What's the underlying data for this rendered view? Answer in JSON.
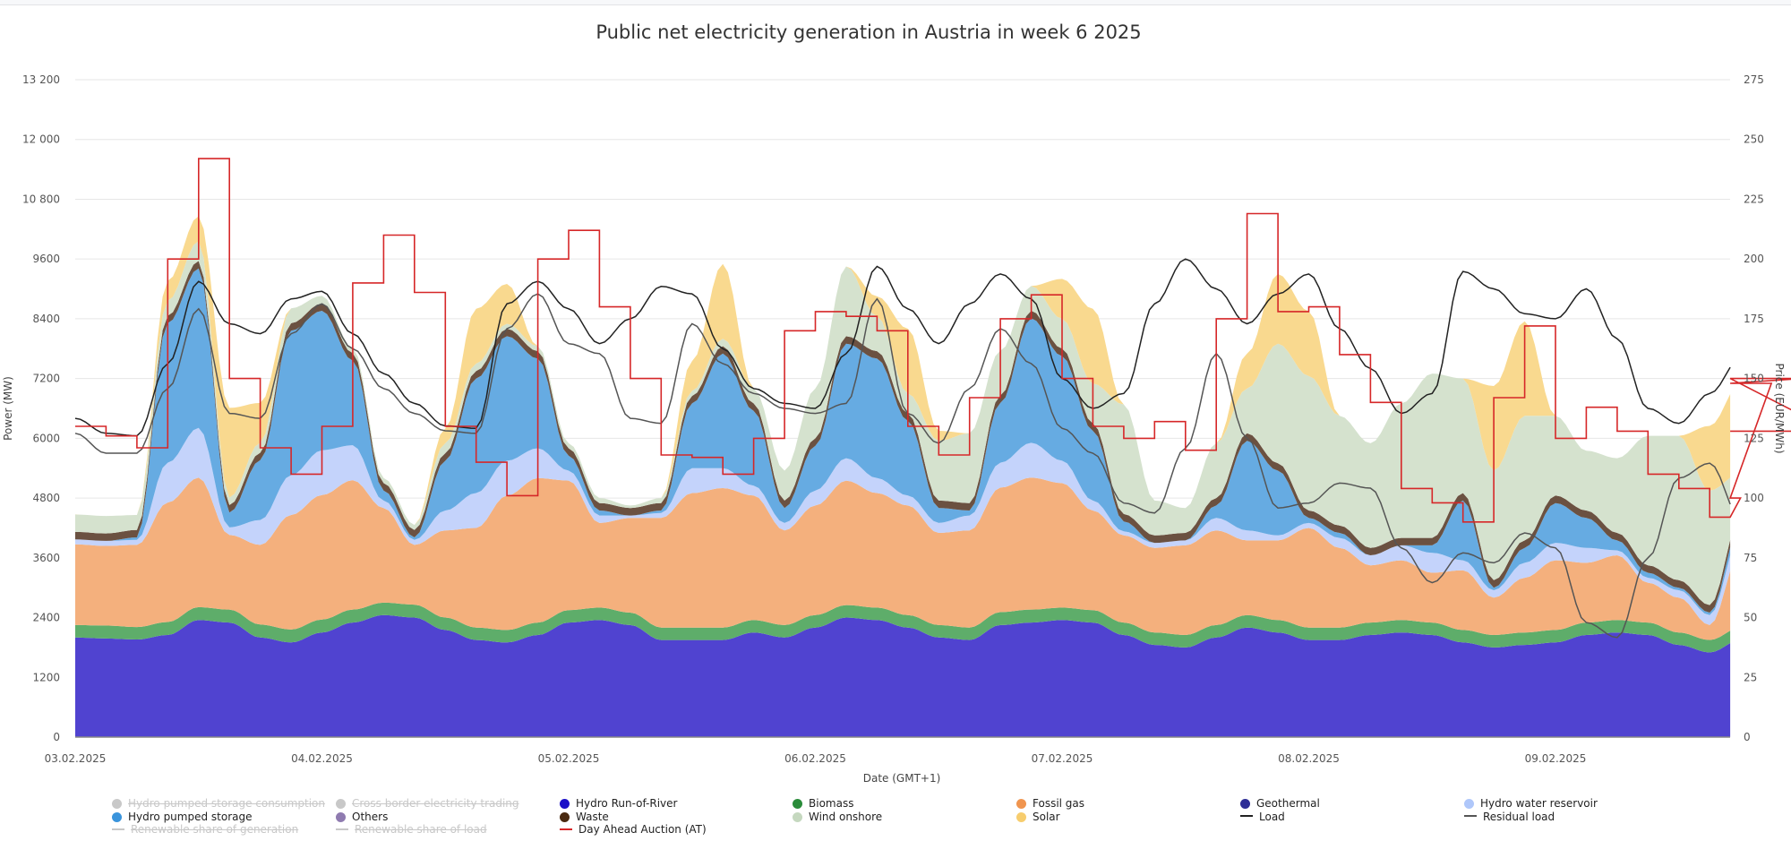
{
  "chart_data": {
    "type": "area",
    "title": "Public net electricity generation in Austria in week 6 2025",
    "xlabel": "Date (GMT+1)",
    "ylabel": "Power (MW)",
    "y2label": "Price (EUR/MWh)",
    "ylim": [
      0,
      13200
    ],
    "y2lim": [
      0,
      275
    ],
    "yticks": [
      "0",
      "1200",
      "2400",
      "3600",
      "4800",
      "6000",
      "7200",
      "8400",
      "9600",
      "10 800",
      "12 000",
      "13 200"
    ],
    "y2ticks": [
      "0",
      "25",
      "50",
      "75",
      "100",
      "125",
      "150",
      "175",
      "200",
      "225",
      "250",
      "275"
    ],
    "xticks": [
      "03.02.2025",
      "04.02.2025",
      "05.02.2025",
      "06.02.2025",
      "07.02.2025",
      "08.02.2025",
      "09.02.2025"
    ],
    "x_unit": "hours since 03.02.2025 00:00",
    "x_step_hours": 3,
    "x_end_hours": 161,
    "grid": true,
    "legend_position": "bottom",
    "stacked_series": [
      {
        "name": "Hydro Run-of-River",
        "color": "#5043d0",
        "values": [
          2000,
          1980,
          1960,
          2050,
          2350,
          2300,
          2000,
          1900,
          2100,
          2300,
          2450,
          2400,
          2150,
          1950,
          1900,
          2050,
          2300,
          2350,
          2250,
          1950,
          1950,
          1950,
          2100,
          2000,
          2200,
          2400,
          2350,
          2200,
          2000,
          1950,
          2250,
          2300,
          2350,
          2300,
          2050,
          1850,
          1800,
          2000,
          2200,
          2100,
          1950,
          1950,
          2050,
          2100,
          2050,
          1900,
          1800,
          1850,
          1900,
          2050,
          2100,
          2050,
          1850,
          1700,
          1950,
          2150,
          2150,
          1950
        ]
      },
      {
        "name": "Biomass",
        "color": "#5ead6a",
        "values": [
          250,
          260,
          250,
          260,
          260,
          260,
          260,
          260,
          260,
          260,
          250,
          260,
          250,
          250,
          250,
          250,
          250,
          250,
          250,
          250,
          250,
          250,
          250,
          250,
          250,
          250,
          250,
          250,
          250,
          250,
          260,
          260,
          250,
          250,
          250,
          250,
          250,
          250,
          250,
          250,
          250,
          250,
          250,
          250,
          250,
          250,
          250,
          250,
          250,
          250,
          250,
          250,
          250,
          250,
          250,
          250,
          250,
          250
        ]
      },
      {
        "name": "Fossil gas",
        "color": "#f4b07d",
        "values": [
          1620,
          1600,
          1650,
          2400,
          2600,
          1500,
          1600,
          2300,
          2500,
          2600,
          1900,
          1200,
          1750,
          2000,
          2700,
          2900,
          2600,
          1700,
          1900,
          2200,
          2700,
          2800,
          2500,
          1900,
          2200,
          2500,
          2300,
          2200,
          1850,
          1950,
          2500,
          2650,
          2500,
          2000,
          1750,
          1700,
          1800,
          1900,
          1500,
          1600,
          2000,
          1600,
          1150,
          1200,
          1000,
          1200,
          750,
          1100,
          1400,
          1200,
          1300,
          800,
          700,
          300,
          1500,
          1800,
          1800,
          1600
        ]
      },
      {
        "name": "Hydro water reservoir",
        "color": "#c4d3fb",
        "values": [
          100,
          100,
          100,
          800,
          1000,
          150,
          500,
          800,
          900,
          700,
          150,
          100,
          400,
          700,
          700,
          600,
          200,
          150,
          50,
          100,
          500,
          400,
          200,
          150,
          300,
          450,
          300,
          200,
          200,
          300,
          500,
          700,
          450,
          200,
          80,
          100,
          100,
          250,
          200,
          100,
          100,
          200,
          200,
          300,
          400,
          200,
          150,
          300,
          350,
          300,
          100,
          100,
          150,
          200,
          350,
          600,
          500,
          200
        ]
      },
      {
        "name": "Hydro pumped storage",
        "color": "#66abe2",
        "values": [
          0,
          0,
          50,
          2800,
          3200,
          300,
          1200,
          2900,
          2800,
          1700,
          200,
          50,
          1000,
          2300,
          2500,
          1800,
          300,
          100,
          0,
          50,
          1300,
          2300,
          1500,
          300,
          900,
          2300,
          2400,
          1500,
          300,
          100,
          1200,
          2500,
          2100,
          1400,
          200,
          0,
          0,
          250,
          1800,
          1300,
          100,
          100,
          0,
          0,
          150,
          1200,
          50,
          300,
          800,
          600,
          200,
          100,
          50,
          50,
          200,
          1300,
          1600,
          300
        ]
      },
      {
        "name": "Waste",
        "color": "#6b5141",
        "values": [
          150,
          150,
          150,
          150,
          150,
          150,
          150,
          150,
          150,
          150,
          150,
          150,
          150,
          150,
          150,
          150,
          150,
          150,
          150,
          150,
          150,
          150,
          150,
          150,
          150,
          150,
          150,
          150,
          150,
          150,
          150,
          150,
          150,
          150,
          150,
          150,
          150,
          150,
          150,
          150,
          150,
          150,
          150,
          150,
          150,
          150,
          150,
          150,
          150,
          150,
          150,
          150,
          150,
          150,
          150,
          150,
          150,
          150
        ]
      },
      {
        "name": "Wind onshore",
        "color": "#d5e2ce",
        "values": [
          350,
          350,
          300,
          300,
          400,
          150,
          200,
          300,
          150,
          100,
          100,
          100,
          200,
          150,
          100,
          100,
          100,
          100,
          50,
          100,
          100,
          150,
          300,
          600,
          1000,
          1400,
          700,
          400,
          1200,
          1400,
          900,
          500,
          600,
          800,
          2200,
          700,
          500,
          1100,
          900,
          2400,
          2700,
          2200,
          2100,
          2700,
          3300,
          2300,
          2200,
          2500,
          1600,
          1200,
          1500,
          2600,
          2900,
          2300,
          900,
          600,
          500,
          1100
        ]
      },
      {
        "name": "Solar",
        "color": "#f9d98f",
        "values": [
          0,
          0,
          0,
          400,
          500,
          1800,
          800,
          0,
          0,
          0,
          0,
          0,
          300,
          1100,
          800,
          0,
          0,
          0,
          0,
          0,
          600,
          1500,
          0,
          0,
          0,
          0,
          400,
          1300,
          200,
          0,
          0,
          0,
          800,
          1500,
          0,
          0,
          0,
          0,
          700,
          1400,
          1300,
          0,
          0,
          0,
          0,
          0,
          1700,
          1900,
          0,
          0,
          0,
          0,
          0,
          1300,
          1800,
          0,
          0,
          0
        ]
      }
    ],
    "line_series": [
      {
        "name": "Load",
        "color": "#222222",
        "axis": "left",
        "values": [
          6400,
          6100,
          6050,
          7500,
          9150,
          8300,
          8100,
          8800,
          8950,
          8100,
          7300,
          6700,
          6250,
          6200,
          8700,
          9150,
          8600,
          7900,
          8400,
          9050,
          8900,
          7800,
          7000,
          6700,
          6600,
          7700,
          9450,
          8600,
          7900,
          8700,
          9300,
          8800,
          7200,
          6600,
          6900,
          8700,
          9600,
          9000,
          8300,
          8900,
          9300,
          8200,
          7400,
          6500,
          6900,
          9350,
          9000,
          8500,
          8400,
          9000,
          8000,
          6600,
          6300,
          6900,
          7600,
          7200,
          6300,
          5900
        ]
      },
      {
        "name": "Residual load",
        "color": "#555555",
        "axis": "left",
        "values": [
          6100,
          5700,
          5700,
          7000,
          8600,
          6500,
          6400,
          8100,
          8700,
          7800,
          7000,
          6500,
          6150,
          6100,
          8200,
          8900,
          7900,
          7700,
          6400,
          6300,
          8300,
          7500,
          6900,
          6600,
          6500,
          6700,
          8800,
          6500,
          5900,
          7000,
          8200,
          7500,
          6200,
          5700,
          4700,
          4500,
          5800,
          7700,
          6000,
          4600,
          4700,
          5100,
          5000,
          3800,
          3100,
          3700,
          3500,
          4100,
          3800,
          2300,
          2000,
          3600,
          5200,
          5500,
          4400,
          3000,
          2800,
          3000
        ]
      },
      {
        "name": "Day Ahead Auction (AT)",
        "color": "#d62728",
        "axis": "right",
        "values": [
          130,
          126,
          121,
          200,
          242,
          150,
          121,
          110,
          130,
          190,
          210,
          186,
          130,
          115,
          101,
          200,
          212,
          180,
          150,
          118,
          117,
          110,
          125,
          170,
          178,
          176,
          170,
          130,
          118,
          142,
          175,
          185,
          150,
          130,
          125,
          132,
          120,
          175,
          219,
          178,
          180,
          160,
          140,
          104,
          98,
          90,
          142,
          172,
          125,
          138,
          128,
          110,
          104,
          92,
          100,
          148,
          150,
          128
        ]
      }
    ]
  },
  "legend": [
    {
      "label": "Hydro pumped storage consumption",
      "color": "#c8c8c8",
      "symbol": "dot",
      "hidden": true
    },
    {
      "label": "Cross border electricity trading",
      "color": "#c8c8c8",
      "symbol": "dot",
      "hidden": true
    },
    {
      "label": "Hydro Run-of-River",
      "color": "#1c10c8",
      "symbol": "dot",
      "hidden": false
    },
    {
      "label": "Biomass",
      "color": "#2a8c3a",
      "symbol": "dot",
      "hidden": false
    },
    {
      "label": "Fossil gas",
      "color": "#f0954f",
      "symbol": "dot",
      "hidden": false
    },
    {
      "label": "Geothermal",
      "color": "#2e2e96",
      "symbol": "dot",
      "hidden": false
    },
    {
      "label": "Hydro water reservoir",
      "color": "#afc7fa",
      "symbol": "dot",
      "hidden": false
    },
    {
      "label": "Hydro pumped storage",
      "color": "#3a94dc",
      "symbol": "dot",
      "hidden": false
    },
    {
      "label": "Others",
      "color": "#8f7bb0",
      "symbol": "dot",
      "hidden": false
    },
    {
      "label": "Waste",
      "color": "#4a2a10",
      "symbol": "dot",
      "hidden": false
    },
    {
      "label": "Wind onshore",
      "color": "#c5d8bf",
      "symbol": "dot",
      "hidden": false
    },
    {
      "label": "Solar",
      "color": "#f7cd6e",
      "symbol": "dot",
      "hidden": false
    },
    {
      "label": "Load",
      "color": "#222222",
      "symbol": "line",
      "hidden": false
    },
    {
      "label": "Residual load",
      "color": "#555555",
      "symbol": "line",
      "hidden": false
    },
    {
      "label": "Renewable share of generation",
      "color": "#c8c8c8",
      "symbol": "line",
      "hidden": true
    },
    {
      "label": "Renewable share of load",
      "color": "#c8c8c8",
      "symbol": "line",
      "hidden": true
    },
    {
      "label": "Day Ahead Auction (AT)",
      "color": "#d62728",
      "symbol": "line",
      "hidden": false
    }
  ]
}
